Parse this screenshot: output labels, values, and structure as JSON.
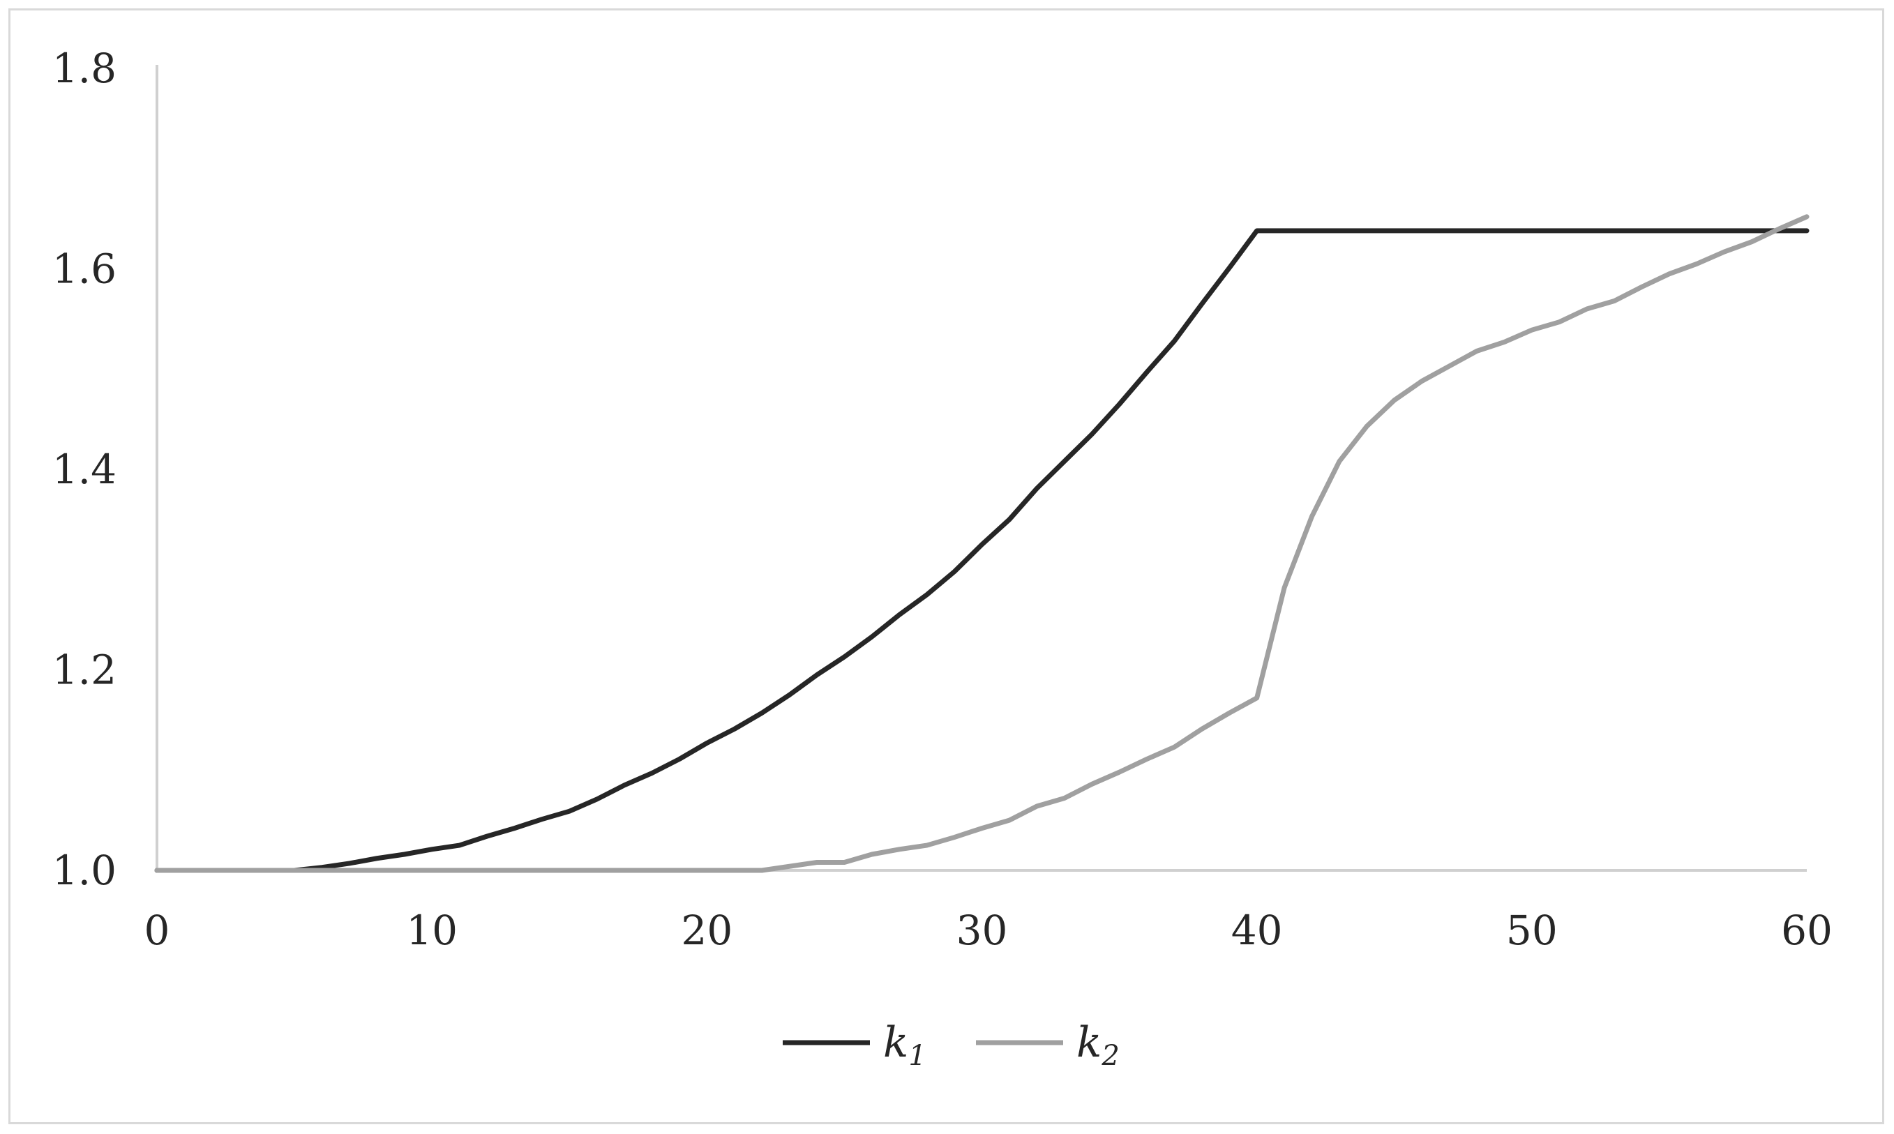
{
  "chart_data": {
    "type": "line",
    "title": "",
    "xlabel": "",
    "ylabel": "",
    "xlim": [
      0,
      60
    ],
    "ylim": [
      1.0,
      1.8
    ],
    "x_ticks": [
      "0",
      "10",
      "20",
      "30",
      "40",
      "50",
      "60"
    ],
    "y_ticks": [
      "1.0",
      "1.2",
      "1.4",
      "1.6",
      "1.8"
    ],
    "grid": false,
    "legend_position": "bottom",
    "x": [
      0,
      1,
      2,
      3,
      4,
      5,
      6,
      7,
      8,
      9,
      10,
      11,
      12,
      13,
      14,
      15,
      16,
      17,
      18,
      19,
      20,
      21,
      22,
      23,
      24,
      25,
      26,
      27,
      28,
      29,
      30,
      31,
      32,
      33,
      34,
      35,
      36,
      37,
      38,
      39,
      40,
      41,
      42,
      43,
      44,
      45,
      46,
      47,
      48,
      49,
      50,
      51,
      52,
      53,
      54,
      55,
      56,
      57,
      58,
      59,
      60
    ],
    "series": [
      {
        "name": "k1",
        "label_main": "k",
        "label_sub": "1",
        "color": "#262626",
        "values": [
          1.0,
          1.0,
          1.0,
          1.0,
          1.0,
          1.0,
          1.003,
          1.007,
          1.012,
          1.016,
          1.021,
          1.025,
          1.034,
          1.042,
          1.051,
          1.059,
          1.071,
          1.085,
          1.097,
          1.111,
          1.127,
          1.141,
          1.157,
          1.175,
          1.195,
          1.213,
          1.233,
          1.255,
          1.275,
          1.298,
          1.325,
          1.35,
          1.381,
          1.408,
          1.435,
          1.465,
          1.497,
          1.528,
          1.565,
          1.601,
          1.638,
          1.638,
          1.638,
          1.638,
          1.638,
          1.638,
          1.638,
          1.638,
          1.638,
          1.638,
          1.638,
          1.638,
          1.638,
          1.638,
          1.638,
          1.638,
          1.638,
          1.638,
          1.638,
          1.638,
          1.638
        ]
      },
      {
        "name": "k2",
        "label_main": "k",
        "label_sub": "2",
        "color": "#a0a0a0",
        "values": [
          1.0,
          1.0,
          1.0,
          1.0,
          1.0,
          1.0,
          1.0,
          1.0,
          1.0,
          1.0,
          1.0,
          1.0,
          1.0,
          1.0,
          1.0,
          1.0,
          1.0,
          1.0,
          1.0,
          1.0,
          1.0,
          1.0,
          1.0,
          1.004,
          1.008,
          1.008,
          1.016,
          1.021,
          1.025,
          1.033,
          1.042,
          1.05,
          1.064,
          1.072,
          1.086,
          1.098,
          1.111,
          1.123,
          1.141,
          1.157,
          1.172,
          1.282,
          1.353,
          1.408,
          1.443,
          1.469,
          1.488,
          1.503,
          1.518,
          1.527,
          1.539,
          1.547,
          1.56,
          1.568,
          1.582,
          1.595,
          1.605,
          1.617,
          1.627,
          1.64,
          1.652
        ]
      }
    ]
  }
}
